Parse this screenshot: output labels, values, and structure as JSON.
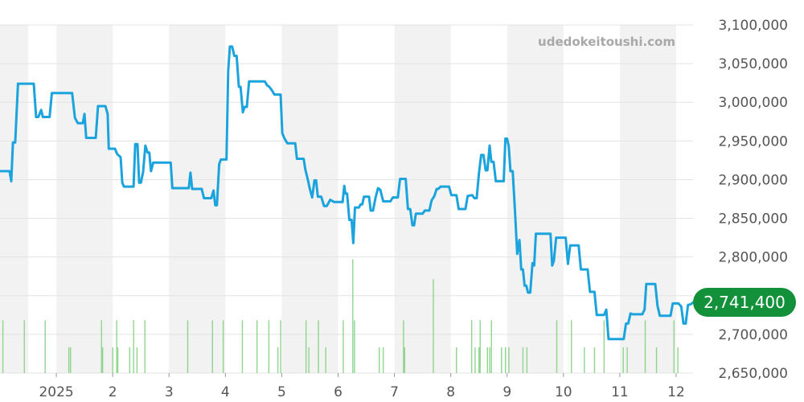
{
  "watermark": "udedokeitoushi.com",
  "current_price_label": "2,741,400",
  "colors": {
    "line": "#1aa3dd",
    "volume": "#8fd48f",
    "badge": "#13913a",
    "band": "#f2f2f2",
    "grid": "#e3e3e3"
  },
  "chart_data": {
    "type": "line",
    "title": "",
    "xlabel": "",
    "ylabel": "",
    "ylim": [
      2650000,
      3100000
    ],
    "xlim": [
      0,
      12.3
    ],
    "y_ticks": [
      {
        "value": 3100000,
        "label": "3,100,000"
      },
      {
        "value": 3050000,
        "label": "3,050,000"
      },
      {
        "value": 3000000,
        "label": "3,000,000"
      },
      {
        "value": 2950000,
        "label": "2,950,000"
      },
      {
        "value": 2900000,
        "label": "2,900,000"
      },
      {
        "value": 2850000,
        "label": "2,850,000"
      },
      {
        "value": 2800000,
        "label": "2,800,000"
      },
      {
        "value": 2750000,
        "label": "2,750,000"
      },
      {
        "value": 2700000,
        "label": "2,700,000"
      },
      {
        "value": 2650000,
        "label": "2,650,000"
      }
    ],
    "x_ticks": [
      {
        "value": 1.0,
        "label": "2025"
      },
      {
        "value": 2.0,
        "label": "2"
      },
      {
        "value": 3.0,
        "label": "3"
      },
      {
        "value": 4.0,
        "label": "4"
      },
      {
        "value": 5.0,
        "label": "5"
      },
      {
        "value": 6.0,
        "label": "6"
      },
      {
        "value": 7.0,
        "label": "7"
      },
      {
        "value": 8.0,
        "label": "8"
      },
      {
        "value": 9.0,
        "label": "9"
      },
      {
        "value": 10.0,
        "label": "10"
      },
      {
        "value": 11.0,
        "label": "11"
      },
      {
        "value": 12.0,
        "label": "12"
      }
    ],
    "shaded_bands": [
      [
        0.0,
        0.5
      ],
      [
        1.0,
        2.0
      ],
      [
        3.0,
        4.0
      ],
      [
        5.0,
        6.0
      ],
      [
        7.0,
        8.0
      ],
      [
        9.0,
        10.0
      ],
      [
        11.0,
        12.0
      ]
    ],
    "series": [
      {
        "values": [
          [
            0.0,
            2911000
          ],
          [
            0.17,
            2911000
          ],
          [
            0.2,
            2898000
          ],
          [
            0.23,
            2948000
          ],
          [
            0.27,
            2948000
          ],
          [
            0.32,
            3024000
          ],
          [
            0.6,
            3024000
          ],
          [
            0.64,
            2981000
          ],
          [
            0.68,
            2981000
          ],
          [
            0.73,
            2990000
          ],
          [
            0.76,
            2981000
          ],
          [
            0.88,
            2981000
          ],
          [
            0.92,
            3012000
          ],
          [
            1.28,
            3012000
          ],
          [
            1.33,
            2980000
          ],
          [
            1.38,
            2973000
          ],
          [
            1.47,
            2973000
          ],
          [
            1.5,
            2985000
          ],
          [
            1.53,
            2954000
          ],
          [
            1.7,
            2954000
          ],
          [
            1.74,
            2995000
          ],
          [
            1.87,
            2995000
          ],
          [
            1.91,
            2985000
          ],
          [
            1.93,
            2940000
          ],
          [
            2.04,
            2940000
          ],
          [
            2.08,
            2933000
          ],
          [
            2.14,
            2929000
          ],
          [
            2.17,
            2896000
          ],
          [
            2.2,
            2891000
          ],
          [
            2.37,
            2891000
          ],
          [
            2.4,
            2946000
          ],
          [
            2.44,
            2946000
          ],
          [
            2.47,
            2896000
          ],
          [
            2.5,
            2896000
          ],
          [
            2.54,
            2910000
          ],
          [
            2.58,
            2944000
          ],
          [
            2.62,
            2935000
          ],
          [
            2.65,
            2935000
          ],
          [
            2.68,
            2911000
          ],
          [
            2.72,
            2922000
          ],
          [
            3.03,
            2922000
          ],
          [
            3.06,
            2889000
          ],
          [
            3.35,
            2889000
          ],
          [
            3.38,
            2909000
          ],
          [
            3.41,
            2888000
          ],
          [
            3.58,
            2888000
          ],
          [
            3.62,
            2876000
          ],
          [
            3.75,
            2876000
          ],
          [
            3.79,
            2886000
          ],
          [
            3.82,
            2867000
          ],
          [
            3.85,
            2867000
          ],
          [
            3.89,
            2920000
          ],
          [
            3.92,
            2926000
          ],
          [
            4.02,
            2926000
          ],
          [
            4.05,
            3040000
          ],
          [
            4.08,
            3072000
          ],
          [
            4.12,
            3072000
          ],
          [
            4.16,
            3060000
          ],
          [
            4.2,
            3060000
          ],
          [
            4.24,
            3020000
          ],
          [
            4.27,
            3020000
          ],
          [
            4.31,
            2987000
          ],
          [
            4.34,
            2994000
          ],
          [
            4.38,
            2994000
          ],
          [
            4.42,
            3027000
          ],
          [
            4.7,
            3027000
          ],
          [
            4.74,
            3022000
          ],
          [
            4.78,
            3020000
          ],
          [
            4.83,
            3015000
          ],
          [
            4.87,
            3010000
          ],
          [
            4.98,
            3010000
          ],
          [
            5.01,
            2960000
          ],
          [
            5.05,
            2953000
          ],
          [
            5.1,
            2947000
          ],
          [
            5.2,
            2947000
          ],
          [
            5.24,
            2947000
          ],
          [
            5.27,
            2927000
          ],
          [
            5.39,
            2927000
          ],
          [
            5.42,
            2913000
          ],
          [
            5.47,
            2898000
          ],
          [
            5.5,
            2888000
          ],
          [
            5.54,
            2877000
          ],
          [
            5.58,
            2899000
          ],
          [
            5.61,
            2899000
          ],
          [
            5.64,
            2878000
          ],
          [
            5.7,
            2878000
          ],
          [
            5.75,
            2866000
          ],
          [
            5.8,
            2866000
          ],
          [
            5.86,
            2874000
          ],
          [
            5.93,
            2871000
          ],
          [
            6.08,
            2871000
          ],
          [
            6.11,
            2892000
          ],
          [
            6.13,
            2882000
          ],
          [
            6.16,
            2882000
          ],
          [
            6.2,
            2848000
          ],
          [
            6.24,
            2848000
          ],
          [
            6.27,
            2818000
          ],
          [
            6.3,
            2864000
          ],
          [
            6.37,
            2864000
          ],
          [
            6.4,
            2868000
          ],
          [
            6.43,
            2868000
          ],
          [
            6.46,
            2878000
          ],
          [
            6.55,
            2878000
          ],
          [
            6.58,
            2860000
          ],
          [
            6.62,
            2860000
          ],
          [
            6.67,
            2878000
          ],
          [
            6.71,
            2889000
          ],
          [
            6.75,
            2887000
          ],
          [
            6.8,
            2872000
          ],
          [
            6.93,
            2872000
          ],
          [
            6.97,
            2877000
          ],
          [
            7.06,
            2877000
          ],
          [
            7.1,
            2901000
          ],
          [
            7.2,
            2901000
          ],
          [
            7.24,
            2862000
          ],
          [
            7.28,
            2862000
          ],
          [
            7.32,
            2841000
          ],
          [
            7.35,
            2841000
          ],
          [
            7.38,
            2856000
          ],
          [
            7.46,
            2856000
          ],
          [
            7.5,
            2856000
          ],
          [
            7.54,
            2860000
          ],
          [
            7.62,
            2860000
          ],
          [
            7.66,
            2873000
          ],
          [
            7.71,
            2879000
          ],
          [
            7.75,
            2888000
          ],
          [
            7.78,
            2888000
          ],
          [
            7.82,
            2891000
          ],
          [
            7.97,
            2891000
          ],
          [
            8.01,
            2880000
          ],
          [
            8.1,
            2880000
          ],
          [
            8.14,
            2862000
          ],
          [
            8.26,
            2862000
          ],
          [
            8.3,
            2879000
          ],
          [
            8.38,
            2880000
          ],
          [
            8.42,
            2876000
          ],
          [
            8.46,
            2876000
          ],
          [
            8.5,
            2908000
          ],
          [
            8.54,
            2932000
          ],
          [
            8.58,
            2932000
          ],
          [
            8.62,
            2912000
          ],
          [
            8.65,
            2912000
          ],
          [
            8.69,
            2944000
          ],
          [
            8.72,
            2923000
          ],
          [
            8.76,
            2923000
          ],
          [
            8.8,
            2898000
          ],
          [
            8.94,
            2898000
          ],
          [
            8.97,
            2953000
          ],
          [
            9.0,
            2953000
          ],
          [
            9.03,
            2943000
          ],
          [
            9.06,
            2911000
          ],
          [
            9.1,
            2911000
          ],
          [
            9.14,
            2860000
          ],
          [
            9.18,
            2804000
          ],
          [
            9.22,
            2822000
          ],
          [
            9.25,
            2784000
          ],
          [
            9.28,
            2784000
          ],
          [
            9.31,
            2763000
          ],
          [
            9.34,
            2763000
          ],
          [
            9.37,
            2754000
          ],
          [
            9.41,
            2754000
          ],
          [
            9.45,
            2792000
          ],
          [
            9.48,
            2789000
          ],
          [
            9.51,
            2830000
          ],
          [
            9.77,
            2830000
          ],
          [
            9.8,
            2789000
          ],
          [
            9.83,
            2795000
          ],
          [
            9.87,
            2825000
          ],
          [
            10.04,
            2825000
          ],
          [
            10.08,
            2791000
          ],
          [
            10.12,
            2815000
          ],
          [
            10.27,
            2815000
          ],
          [
            10.31,
            2784000
          ],
          [
            10.43,
            2784000
          ],
          [
            10.47,
            2755000
          ],
          [
            10.55,
            2755000
          ],
          [
            10.59,
            2725000
          ],
          [
            10.72,
            2725000
          ],
          [
            10.76,
            2732000
          ],
          [
            10.8,
            2694000
          ],
          [
            11.07,
            2694000
          ],
          [
            11.11,
            2714000
          ],
          [
            11.15,
            2714000
          ],
          [
            11.19,
            2727000
          ],
          [
            11.23,
            2726000
          ],
          [
            11.4,
            2726000
          ],
          [
            11.44,
            2732000
          ],
          [
            11.47,
            2765000
          ],
          [
            11.63,
            2765000
          ],
          [
            11.67,
            2737000
          ],
          [
            11.71,
            2724000
          ],
          [
            11.9,
            2724000
          ],
          [
            11.94,
            2740000
          ],
          [
            12.04,
            2740000
          ],
          [
            12.09,
            2736000
          ],
          [
            12.13,
            2714000
          ],
          [
            12.17,
            2714000
          ],
          [
            12.21,
            2738000
          ],
          [
            12.26,
            2739000
          ],
          [
            12.3,
            2741400
          ]
        ]
      }
    ],
    "volume_bars": [
      {
        "x": 0.05,
        "h": 0.45
      },
      {
        "x": 0.43,
        "h": 0.45
      },
      {
        "x": 0.8,
        "h": 0.45
      },
      {
        "x": 1.22,
        "h": 0.22
      },
      {
        "x": 1.25,
        "h": 0.22
      },
      {
        "x": 1.8,
        "h": 0.45
      },
      {
        "x": 1.82,
        "h": 0.22
      },
      {
        "x": 2.0,
        "h": 0.22
      },
      {
        "x": 2.07,
        "h": 0.45
      },
      {
        "x": 2.09,
        "h": 0.22
      },
      {
        "x": 2.3,
        "h": 0.22
      },
      {
        "x": 2.37,
        "h": 0.45
      },
      {
        "x": 2.43,
        "h": 0.22
      },
      {
        "x": 2.57,
        "h": 0.45
      },
      {
        "x": 3.33,
        "h": 0.45
      },
      {
        "x": 3.77,
        "h": 0.45
      },
      {
        "x": 3.96,
        "h": 0.45
      },
      {
        "x": 4.3,
        "h": 0.45
      },
      {
        "x": 4.56,
        "h": 0.45
      },
      {
        "x": 4.77,
        "h": 0.45
      },
      {
        "x": 4.93,
        "h": 0.22
      },
      {
        "x": 4.98,
        "h": 0.45
      },
      {
        "x": 5.43,
        "h": 0.45
      },
      {
        "x": 5.48,
        "h": 0.22
      },
      {
        "x": 5.65,
        "h": 0.45
      },
      {
        "x": 5.78,
        "h": 0.22
      },
      {
        "x": 6.09,
        "h": 0.45
      },
      {
        "x": 6.26,
        "h": 0.97
      },
      {
        "x": 6.29,
        "h": 0.45
      },
      {
        "x": 6.73,
        "h": 0.22
      },
      {
        "x": 6.8,
        "h": 0.22
      },
      {
        "x": 7.16,
        "h": 0.45
      },
      {
        "x": 7.18,
        "h": 0.22
      },
      {
        "x": 7.69,
        "h": 0.8
      },
      {
        "x": 8.1,
        "h": 0.22
      },
      {
        "x": 8.37,
        "h": 0.45
      },
      {
        "x": 8.43,
        "h": 0.22
      },
      {
        "x": 8.5,
        "h": 0.22
      },
      {
        "x": 8.52,
        "h": 0.45
      },
      {
        "x": 8.65,
        "h": 0.22
      },
      {
        "x": 8.69,
        "h": 0.22
      },
      {
        "x": 8.72,
        "h": 0.45
      },
      {
        "x": 8.9,
        "h": 0.22
      },
      {
        "x": 8.97,
        "h": 0.22
      },
      {
        "x": 9.03,
        "h": 0.22
      },
      {
        "x": 9.28,
        "h": 0.22
      },
      {
        "x": 9.35,
        "h": 0.22
      },
      {
        "x": 9.88,
        "h": 0.45
      },
      {
        "x": 10.14,
        "h": 0.45
      },
      {
        "x": 10.37,
        "h": 0.22
      },
      {
        "x": 10.55,
        "h": 0.22
      },
      {
        "x": 10.72,
        "h": 0.45
      },
      {
        "x": 11.06,
        "h": 0.22
      },
      {
        "x": 11.13,
        "h": 0.22
      },
      {
        "x": 11.45,
        "h": 0.45
      },
      {
        "x": 11.65,
        "h": 0.22
      },
      {
        "x": 11.96,
        "h": 0.45
      },
      {
        "x": 12.03,
        "h": 0.22
      }
    ]
  }
}
